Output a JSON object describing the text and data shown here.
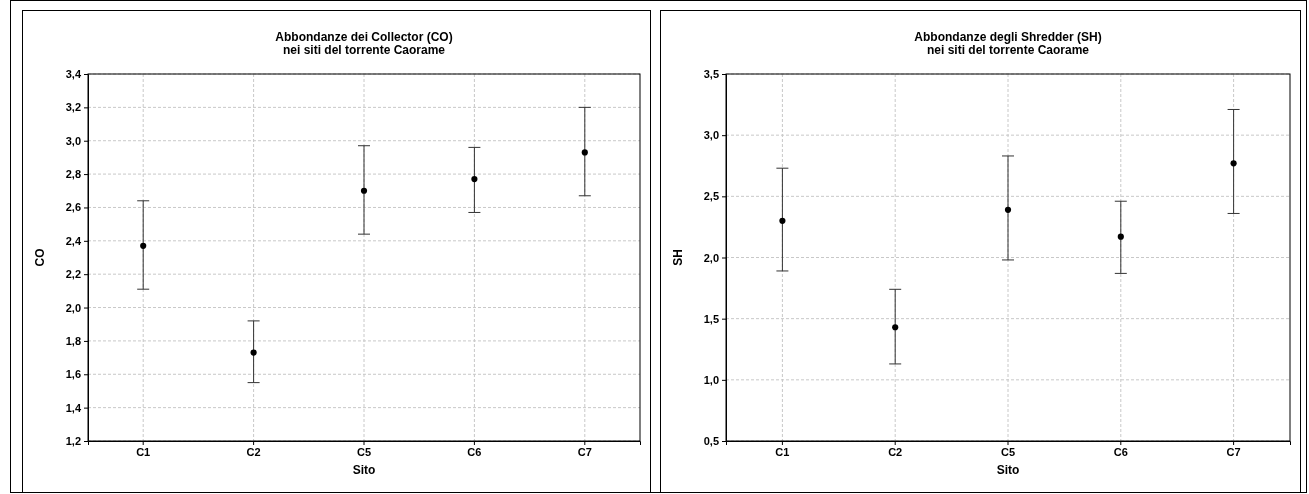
{
  "chart_data": [
    {
      "type": "scatter",
      "title": "Abbondanze dei Collector (CO)",
      "subtitle": "nei siti del torrente Caorame",
      "xlabel": "Sito",
      "ylabel": "CO",
      "categories": [
        "C1",
        "C2",
        "C5",
        "C6",
        "C7"
      ],
      "values": [
        2.37,
        1.73,
        2.7,
        2.77,
        2.93
      ],
      "errors": [
        [
          2.11,
          2.64
        ],
        [
          1.55,
          1.92
        ],
        [
          2.44,
          2.97
        ],
        [
          2.57,
          2.96
        ],
        [
          2.67,
          3.2
        ]
      ],
      "color": "#000000",
      "marker": "circle",
      "grid": true,
      "ylim": [
        1.2,
        3.4
      ],
      "yticks": [
        {
          "value": 1.2,
          "label": "1,2"
        },
        {
          "value": 1.4,
          "label": "1,4"
        },
        {
          "value": 1.6,
          "label": "1,6"
        },
        {
          "value": 1.8,
          "label": "1,8"
        },
        {
          "value": 2.0,
          "label": "2,0"
        },
        {
          "value": 2.2,
          "label": "2,2"
        },
        {
          "value": 2.4,
          "label": "2,4"
        },
        {
          "value": 2.6,
          "label": "2,6"
        },
        {
          "value": 2.8,
          "label": "2,8"
        },
        {
          "value": 3.0,
          "label": "3,0"
        },
        {
          "value": 3.2,
          "label": "3,2"
        },
        {
          "value": 3.4,
          "label": "3,4"
        }
      ]
    },
    {
      "type": "scatter",
      "title": "Abbondanze degli Shredder (SH)",
      "subtitle": "nei siti del torrente Caorame",
      "xlabel": "Sito",
      "ylabel": "SH",
      "categories": [
        "C1",
        "C2",
        "C5",
        "C6",
        "C7"
      ],
      "values": [
        2.3,
        1.43,
        2.39,
        2.17,
        2.77
      ],
      "errors": [
        [
          1.89,
          2.73
        ],
        [
          1.13,
          1.74
        ],
        [
          1.98,
          2.83
        ],
        [
          1.87,
          2.46
        ],
        [
          2.36,
          3.21
        ]
      ],
      "color": "#000000",
      "marker": "circle",
      "grid": true,
      "ylim": [
        0.5,
        3.5
      ],
      "yticks": [
        {
          "value": 0.5,
          "label": "0,5"
        },
        {
          "value": 1.0,
          "label": "1,0"
        },
        {
          "value": 1.5,
          "label": "1,5"
        },
        {
          "value": 2.0,
          "label": "2,0"
        },
        {
          "value": 2.5,
          "label": "2,5"
        },
        {
          "value": 3.0,
          "label": "3,0"
        },
        {
          "value": 3.5,
          "label": "3,5"
        }
      ]
    }
  ]
}
